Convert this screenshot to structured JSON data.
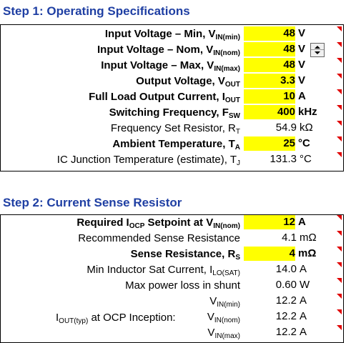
{
  "step1": {
    "title": "Step 1: Operating Specifications",
    "rows": [
      {
        "label": "Input Voltage – Min, V",
        "sub": "IN(min)",
        "value": "48",
        "unit": "V",
        "input": true
      },
      {
        "label": "Input Voltage – Nom, V",
        "sub": "IN(nom)",
        "value": "48",
        "unit": "V",
        "input": true
      },
      {
        "label": "Input Voltage – Max, V",
        "sub": "IN(max)",
        "value": "48",
        "unit": "V",
        "input": true
      },
      {
        "label": "Output Voltage, V",
        "sub": "OUT",
        "value": "3.3",
        "unit": "V",
        "input": true
      },
      {
        "label": "Full Load Output Current, I",
        "sub": "OUT",
        "value": "10",
        "unit": "A",
        "input": true
      },
      {
        "label": "Switching Frequency, F",
        "sub": "SW",
        "value": "400",
        "unit": "kHz",
        "input": true
      },
      {
        "label": "Frequency Set Resistor, R",
        "sub": "T",
        "value": "54.9",
        "unit": "kΩ",
        "input": false
      },
      {
        "label": "Ambient Temperature, T",
        "sub": "A",
        "value": "25",
        "unit": "°C",
        "input": true
      },
      {
        "label": "IC Junction Temperature (estimate), T",
        "sub": "J",
        "value": "131.3",
        "unit": "°C",
        "input": false
      }
    ]
  },
  "step2": {
    "title": "Step 2: Current Sense Resistor",
    "rows": [
      {
        "label": "Required I",
        "sub": "OCP",
        "label2": " Setpoint at V",
        "sub2": "IN(nom)",
        "value": "12",
        "unit": "A",
        "input": true
      },
      {
        "label": "Recommended Sense Resistance",
        "sub": "",
        "value": "4.1",
        "unit": "mΩ",
        "input": false
      },
      {
        "label": "Sense Resistance, R",
        "sub": "S",
        "value": "4",
        "unit": "mΩ",
        "input": true
      },
      {
        "label": "Min Inductor Sat Current, I",
        "sub": "LO(SAT)",
        "value": "14.0",
        "unit": "A",
        "input": false
      },
      {
        "label": "Max power loss in shunt",
        "sub": "",
        "value": "0.60",
        "unit": "W",
        "input": false
      },
      {
        "label": "V",
        "sub": "IN(min)",
        "value": "12.2",
        "unit": "A",
        "input": false
      },
      {
        "label": "V",
        "sub": "IN(nom)",
        "value": "12.2",
        "unit": "A",
        "input": false
      },
      {
        "label": "V",
        "sub": "IN(max)",
        "value": "12.2",
        "unit": "A",
        "input": false
      }
    ],
    "ocp_label": "I",
    "ocp_sub": "OUT(typ)",
    "ocp_suffix": " at OCP Inception:"
  }
}
